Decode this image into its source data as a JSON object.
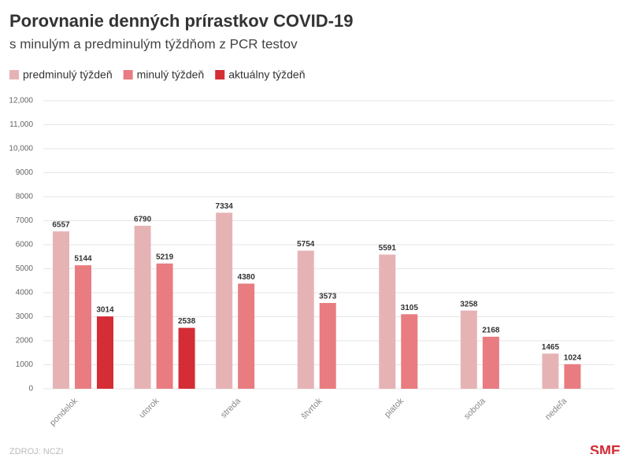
{
  "chart_data": {
    "type": "bar",
    "title": "Porovnanie denných prírastkov COVID-19",
    "subtitle": "s minulým a predminulým týždňom z PCR testov",
    "categories": [
      "pondelok",
      "utorok",
      "streda",
      "štvrtok",
      "piatok",
      "sobota",
      "nedeľa"
    ],
    "series": [
      {
        "name": "predminulý týždeň",
        "color": "#e6b3b5",
        "values": [
          6557,
          6790,
          7334,
          5754,
          5591,
          3258,
          1465
        ]
      },
      {
        "name": "minulý týždeň",
        "color": "#e87c80",
        "values": [
          5144,
          5219,
          4380,
          3573,
          3105,
          2168,
          1024
        ]
      },
      {
        "name": "aktuálny týždeň",
        "color": "#d42d35",
        "values": [
          3014,
          2538,
          null,
          null,
          null,
          null,
          null
        ]
      }
    ],
    "ylim": [
      0,
      12000
    ],
    "yticks": [
      0,
      1000,
      2000,
      3000,
      4000,
      5000,
      6000,
      7000,
      8000,
      9000,
      {
        "value": 10000,
        "label": "10,000"
      },
      {
        "value": 11000,
        "label": "11,000"
      },
      {
        "value": 12000,
        "label": "12,000"
      }
    ],
    "grid": true,
    "source": "ZDROJ: NCZI",
    "logo": "SME"
  }
}
